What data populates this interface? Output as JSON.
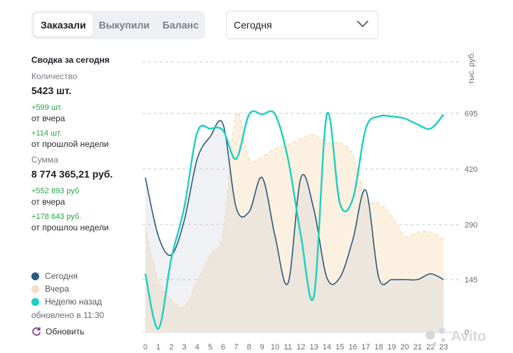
{
  "tabs": [
    {
      "label": "Заказали",
      "active": true
    },
    {
      "label": "Выкупили",
      "active": false
    },
    {
      "label": "Баланс",
      "active": false
    }
  ],
  "period_select": {
    "value": "Сегодня"
  },
  "summary": {
    "title": "Сводка за сегодня",
    "quantity_label": "Количество",
    "quantity_value": "5423 шт.",
    "quantity_delta_yesterday": "+599 шт.",
    "from_yesterday": "от вчера",
    "quantity_delta_week": "+114 шт.",
    "from_last_week": "от прошлой недели",
    "sum_label": "Сумма",
    "sum_value": "8 774 365,21 руб.",
    "sum_delta_yesterday": "+552 893 руб",
    "sum_from_yesterday": "от вчера",
    "sum_delta_week": "+178 643 руб.",
    "sum_from_last_week": "от прошлоu недели"
  },
  "legend": {
    "today": "Сегодня",
    "yesterday": "Вчера",
    "week_ago": "Неделю назад",
    "updated": "обновлено в 11:30",
    "refresh": "Обновить"
  },
  "watermark": "Avito",
  "colors": {
    "today": "#2e5a7c",
    "yesterday": "#f3dfc4",
    "week_ago": "#1fcfc1",
    "positive": "#2aa64a",
    "refresh_icon": "#7a2e86"
  },
  "chart_data": {
    "type": "line",
    "x": [
      0,
      1,
      2,
      3,
      4,
      5,
      6,
      7,
      8,
      9,
      10,
      11,
      12,
      13,
      14,
      15,
      16,
      17,
      18,
      19,
      20,
      21,
      22,
      23
    ],
    "x_ticks": [
      "0",
      "1",
      "2",
      "3",
      "4",
      "5",
      "6",
      "7",
      "8",
      "9",
      "10",
      "11",
      "12",
      "13",
      "14",
      "15",
      "16",
      "17",
      "18",
      "19",
      "20",
      "21",
      "22",
      "23"
    ],
    "y_ticks": [
      "0",
      "145",
      "290",
      "420",
      "695"
    ],
    "ylabel": "тыс. руб.",
    "grid": true,
    "series": [
      {
        "name": "Сегодня",
        "values": [
          400,
          260,
          210,
          300,
          470,
          580,
          640,
          330,
          320,
          400,
          260,
          135,
          400,
          325,
          150,
          150,
          250,
          370,
          150,
          145,
          145,
          145,
          160,
          145
        ]
      },
      {
        "name": "Вчера",
        "values": [
          280,
          140,
          90,
          70,
          140,
          210,
          270,
          690,
          470,
          480,
          520,
          540,
          570,
          590,
          550,
          550,
          490,
          350,
          340,
          310,
          260,
          270,
          270,
          250
        ]
      },
      {
        "name": "Неделю назад",
        "values": [
          160,
          10,
          200,
          330,
          600,
          620,
          610,
          470,
          690,
          690,
          690,
          470,
          260,
          100,
          690,
          340,
          350,
          620,
          680,
          680,
          670,
          640,
          620,
          690
        ]
      }
    ]
  }
}
